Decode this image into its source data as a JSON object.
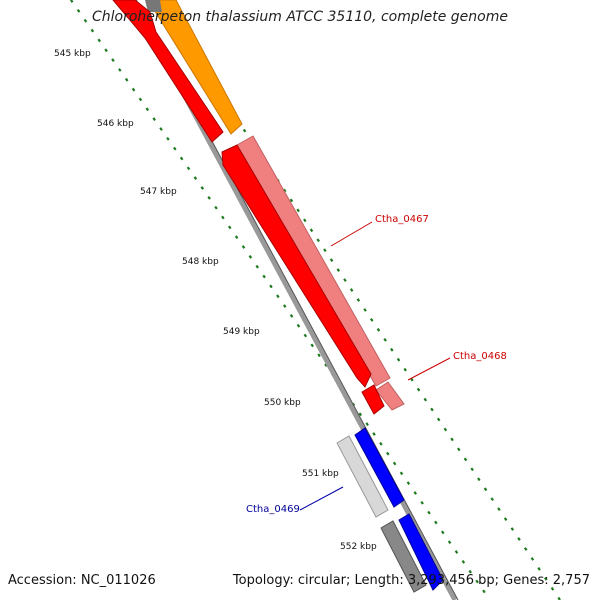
{
  "title": "Chloroherpeton thalassium ATCC 35110, complete genome",
  "footer": {
    "accession": "Accession: NC_011026",
    "summary": "Topology: circular; Length: 3,293,456 bp; Genes: 2,757"
  },
  "ticks": [
    "545 kbp",
    "546 kbp",
    "547 kbp",
    "548 kbp",
    "549 kbp",
    "550 kbp",
    "551 kbp",
    "552 kbp"
  ],
  "gene_labels": [
    {
      "id": "Ctha_0467",
      "text": "Ctha_0467",
      "color": "#cc0000"
    },
    {
      "id": "Ctha_0468",
      "text": "Ctha_0468",
      "color": "#cc0000"
    },
    {
      "id": "Ctha_0469",
      "text": "Ctha_0469",
      "color": "#000099"
    }
  ],
  "colors": {
    "backbone": "#8a8a8a",
    "dots": "#1e7a1e",
    "red": "#ff0000",
    "orange": "#ff9900",
    "pink": "#f08080",
    "blue": "#0000ff",
    "gray": "#808080",
    "light_gray": "#d0d0d0"
  }
}
